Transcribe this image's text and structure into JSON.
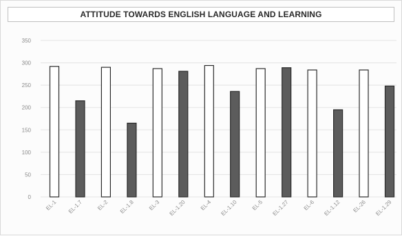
{
  "chart_data": {
    "type": "bar",
    "title": "ATTITUDE TOWARDS ENGLISH LANGUAGE AND LEARNING",
    "xlabel": "",
    "ylabel": "",
    "ylim": [
      0,
      350
    ],
    "yticks": [
      0,
      50,
      100,
      150,
      200,
      250,
      300,
      350
    ],
    "grid": true,
    "legend": "none",
    "categories": [
      "EL-1",
      "EL-1.7",
      "EL-2",
      "EL-1.8",
      "EL-3",
      "EL-1.20",
      "EL-4",
      "EL-1.10",
      "EL-5",
      "EL-1.27",
      "EL-6",
      "EL-1.12",
      "EL-26",
      "EL-1.29"
    ],
    "values": [
      292,
      215,
      290,
      165,
      287,
      281,
      294,
      236,
      287,
      289,
      284,
      195,
      284,
      248
    ],
    "bar_fills": [
      "#ffffff",
      "#5c5c5c",
      "#ffffff",
      "#5c5c5c",
      "#ffffff",
      "#5c5c5c",
      "#ffffff",
      "#5c5c5c",
      "#ffffff",
      "#5c5c5c",
      "#ffffff",
      "#5c5c5c",
      "#ffffff",
      "#5c5c5c"
    ],
    "colors": {
      "light_bar": "#ffffff",
      "dark_bar": "#5c5c5c",
      "bar_outline": "#2a2a2a",
      "grid": "#e3e3e3",
      "tick_text": "#8a8a8a"
    }
  }
}
